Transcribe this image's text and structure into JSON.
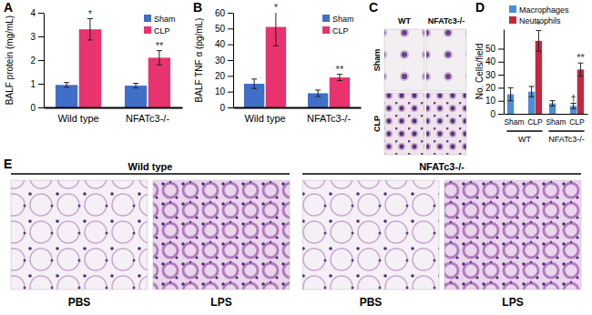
{
  "chart_data": [
    {
      "type": "bar",
      "title": "A",
      "y_label": "BALF protein (mg/mL)",
      "categories": [
        "Wild type",
        "NFATc3-/-"
      ],
      "series": [
        {
          "name": "Sham",
          "color": "#3f6fc6",
          "values": [
            0.95,
            0.92
          ],
          "errors": [
            0.1,
            0.1
          ]
        },
        {
          "name": "CLP",
          "color": "#e8336e",
          "values": [
            3.3,
            2.1
          ],
          "errors": [
            0.45,
            0.3
          ],
          "annotations": [
            "*",
            "**"
          ]
        }
      ],
      "ylim": [
        0,
        4
      ],
      "yticks": [
        0,
        1,
        2,
        3,
        4
      ],
      "grid": false,
      "legend": "upper right"
    },
    {
      "type": "bar",
      "title": "B",
      "y_label": "BALF TNF α (pg/mL)",
      "categories": [
        "Wild type",
        "NFATc3-/-"
      ],
      "series": [
        {
          "name": "Sham",
          "color": "#3f6fc6",
          "values": [
            15,
            9
          ],
          "errors": [
            3,
            2
          ]
        },
        {
          "name": "CLP",
          "color": "#e8336e",
          "values": [
            51,
            19
          ],
          "errors": [
            12,
            2
          ],
          "annotations": [
            "*",
            "**"
          ]
        }
      ],
      "ylim": [
        0,
        60
      ],
      "yticks": [
        0,
        10,
        20,
        30,
        40,
        50,
        60
      ],
      "grid": false,
      "legend": "upper right"
    },
    {
      "type": "bar",
      "title": "D",
      "y_label": "No. Cells/field",
      "categories": [
        "Sham",
        "CLP",
        "Sham",
        "CLP"
      ],
      "group_labels": [
        "WT",
        "NFATc3-/-"
      ],
      "series": [
        {
          "name": "Macrophages",
          "color": "#4a8fd8",
          "values": [
            15,
            17,
            8,
            6
          ],
          "errors": [
            5,
            4,
            2,
            2
          ],
          "annotations": [
            null,
            null,
            null,
            "†"
          ]
        },
        {
          "name": "Neutrophils",
          "color": "#c4283f",
          "values": [
            null,
            56,
            null,
            34
          ],
          "errors": [
            null,
            8,
            null,
            5
          ],
          "annotations": [
            null,
            "*",
            null,
            "**"
          ]
        }
      ],
      "ylim": [
        0,
        65
      ],
      "yticks": [
        0,
        10,
        20,
        30,
        40,
        50
      ],
      "grid": false,
      "legend": "top"
    }
  ],
  "image_panels": [
    {
      "title": "C",
      "column_labels": [
        "WT",
        "NFATc3-/-"
      ],
      "row_labels": [
        "Sham",
        "CLP"
      ]
    },
    {
      "title": "E",
      "group_labels": [
        "Wild type",
        "NFATc3-/-"
      ],
      "column_labels": [
        "PBS",
        "LPS",
        "PBS",
        "LPS"
      ]
    }
  ]
}
